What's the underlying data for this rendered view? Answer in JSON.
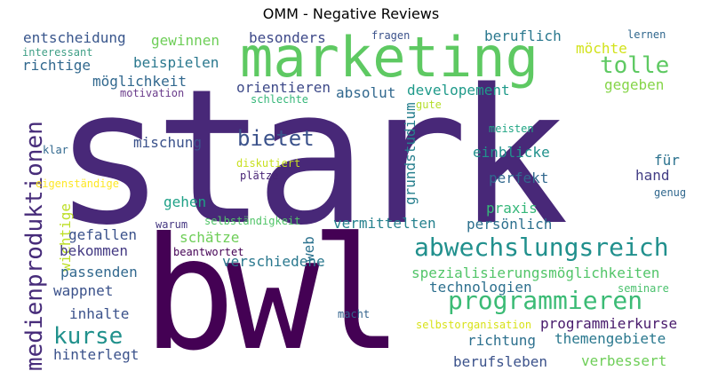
{
  "title": "OMM - Negative Reviews",
  "words": [
    {
      "text": "stark",
      "color": "#482878"
    },
    {
      "text": "bwl",
      "color": "#440154"
    },
    {
      "text": "marketing",
      "color": "#5ec962"
    },
    {
      "text": "medienproduktionen",
      "color": "#472c7a"
    },
    {
      "text": "abwechslungsreich",
      "color": "#21908d"
    },
    {
      "text": "programmieren",
      "color": "#3bbb75"
    },
    {
      "text": "bietet",
      "color": "#3b528b"
    },
    {
      "text": "tolle",
      "color": "#5ec962"
    },
    {
      "text": "kurse",
      "color": "#21918c"
    },
    {
      "text": "entscheidung",
      "color": "#39568c"
    },
    {
      "text": "gewinnen",
      "color": "#6ece58"
    },
    {
      "text": "besonders",
      "color": "#3e4989"
    },
    {
      "text": "fragen",
      "color": "#3b528b"
    },
    {
      "text": "beruflich",
      "color": "#2a788e"
    },
    {
      "text": "lernen",
      "color": "#31688e"
    },
    {
      "text": "interessant",
      "color": "#3f9f86"
    },
    {
      "text": "richtige",
      "color": "#31688e"
    },
    {
      "text": "beispielen",
      "color": "#2a788e"
    },
    {
      "text": "möchte",
      "color": "#d2e21b"
    },
    {
      "text": "möglichkeit",
      "color": "#31688e"
    },
    {
      "text": "orientieren",
      "color": "#3e4a89"
    },
    {
      "text": "absolut",
      "color": "#31688e"
    },
    {
      "text": "developement",
      "color": "#1f9a8a"
    },
    {
      "text": "gegeben",
      "color": "#86d549"
    },
    {
      "text": "motivation",
      "color": "#6a3c8b"
    },
    {
      "text": "schlechte",
      "color": "#35b779"
    },
    {
      "text": "gute",
      "color": "#b5de2b"
    },
    {
      "text": "grundstudium",
      "color": "#277f8e"
    },
    {
      "text": "meisten",
      "color": "#21a685"
    },
    {
      "text": "mischung",
      "color": "#3b528b"
    },
    {
      "text": "einblicke",
      "color": "#21918c"
    },
    {
      "text": "klar",
      "color": "#31688e"
    },
    {
      "text": "diskutiert",
      "color": "#c8e020"
    },
    {
      "text": "für",
      "color": "#2c728e"
    },
    {
      "text": "eigenständige",
      "color": "#fde725"
    },
    {
      "text": "plätze",
      "color": "#482475"
    },
    {
      "text": "perfekt",
      "color": "#31688e"
    },
    {
      "text": "hand",
      "color": "#433e85"
    },
    {
      "text": "genug",
      "color": "#31688e"
    },
    {
      "text": "gehen",
      "color": "#1fa187"
    },
    {
      "text": "wichtige",
      "color": "#bddf26"
    },
    {
      "text": "praxis",
      "color": "#35b779"
    },
    {
      "text": "warum",
      "color": "#453781"
    },
    {
      "text": "selbständigkeit",
      "color": "#52c569"
    },
    {
      "text": "vermittelten",
      "color": "#26828e"
    },
    {
      "text": "persönlich",
      "color": "#2d708e"
    },
    {
      "text": "gefallen",
      "color": "#3b528b"
    },
    {
      "text": "schätze",
      "color": "#6ece58"
    },
    {
      "text": "web",
      "color": "#2c728e"
    },
    {
      "text": "bekommen",
      "color": "#443a83"
    },
    {
      "text": "beantwortet",
      "color": "#440154"
    },
    {
      "text": "verschiedene",
      "color": "#2a788e"
    },
    {
      "text": "spezialisierungsmöglichkeiten",
      "color": "#52c569"
    },
    {
      "text": "passenden",
      "color": "#31688e"
    },
    {
      "text": "technologien",
      "color": "#2d708e"
    },
    {
      "text": "wappnet",
      "color": "#3b528b"
    },
    {
      "text": "seminare",
      "color": "#4ac16d"
    },
    {
      "text": "inhalte",
      "color": "#3b528b"
    },
    {
      "text": "macht",
      "color": "#33638d"
    },
    {
      "text": "programmierkurse",
      "color": "#481a6c"
    },
    {
      "text": "selbstorganisation",
      "color": "#d8e219"
    },
    {
      "text": "themengebiete",
      "color": "#2a788e"
    },
    {
      "text": "richtung",
      "color": "#2d708e"
    },
    {
      "text": "hinterlegt",
      "color": "#3b528b"
    },
    {
      "text": "berufsleben",
      "color": "#3b528b"
    },
    {
      "text": "verbessert",
      "color": "#6ece58"
    }
  ]
}
